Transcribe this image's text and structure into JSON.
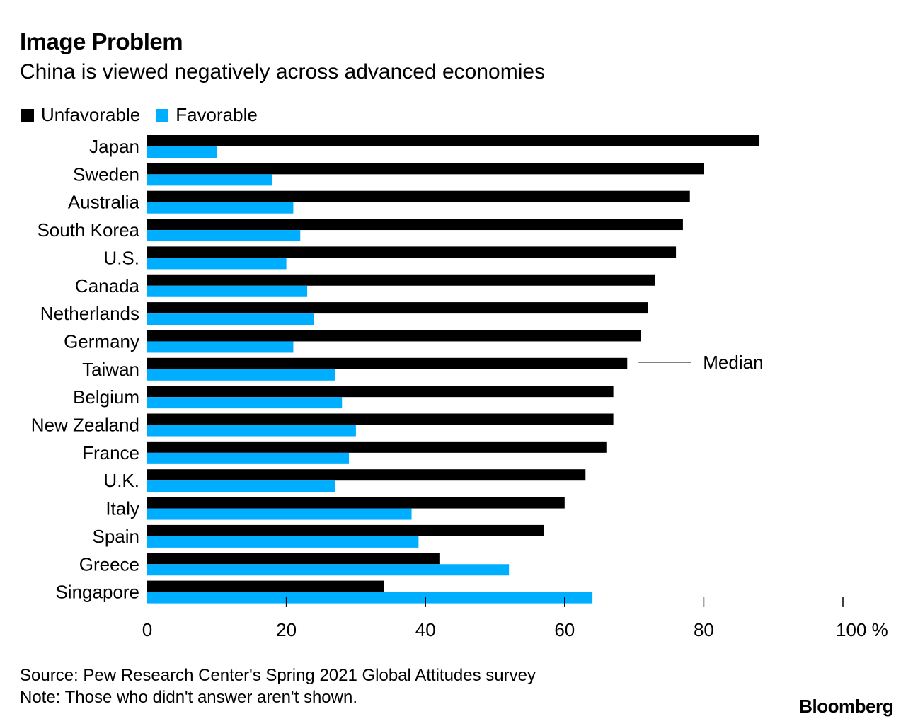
{
  "header": {
    "title": "Image Problem",
    "subtitle": "China is viewed negatively across advanced economies"
  },
  "legend": {
    "unfavorable_label": "Unfavorable",
    "favorable_label": "Favorable"
  },
  "colors": {
    "unfavorable": "#000000",
    "favorable": "#00aeff"
  },
  "chart_data": {
    "type": "bar",
    "orientation": "horizontal",
    "categories": [
      "Japan",
      "Sweden",
      "Australia",
      "South Korea",
      "U.S.",
      "Canada",
      "Netherlands",
      "Germany",
      "Taiwan",
      "Belgium",
      "New Zealand",
      "France",
      "U.K.",
      "Italy",
      "Spain",
      "Greece",
      "Singapore"
    ],
    "series": [
      {
        "name": "Unfavorable",
        "values": [
          88,
          80,
          78,
          77,
          76,
          73,
          72,
          71,
          69,
          67,
          67,
          66,
          63,
          60,
          57,
          42,
          34
        ]
      },
      {
        "name": "Favorable",
        "values": [
          10,
          18,
          21,
          22,
          20,
          23,
          24,
          21,
          27,
          28,
          30,
          29,
          27,
          38,
          39,
          52,
          64
        ]
      }
    ],
    "xlim": [
      0,
      100
    ],
    "xticks": [
      0,
      20,
      40,
      60,
      80,
      100
    ],
    "xtick_labels": [
      "0",
      "20",
      "40",
      "60",
      "80",
      "100 %"
    ],
    "annotation": {
      "label": "Median",
      "category": "Taiwan"
    },
    "grid": false,
    "legend_position": "top-left"
  },
  "footer": {
    "source": "Source: Pew Research Center's Spring 2021 Global Attitudes survey",
    "note": "Note: Those who didn't answer aren't shown.",
    "brand": "Bloomberg"
  }
}
